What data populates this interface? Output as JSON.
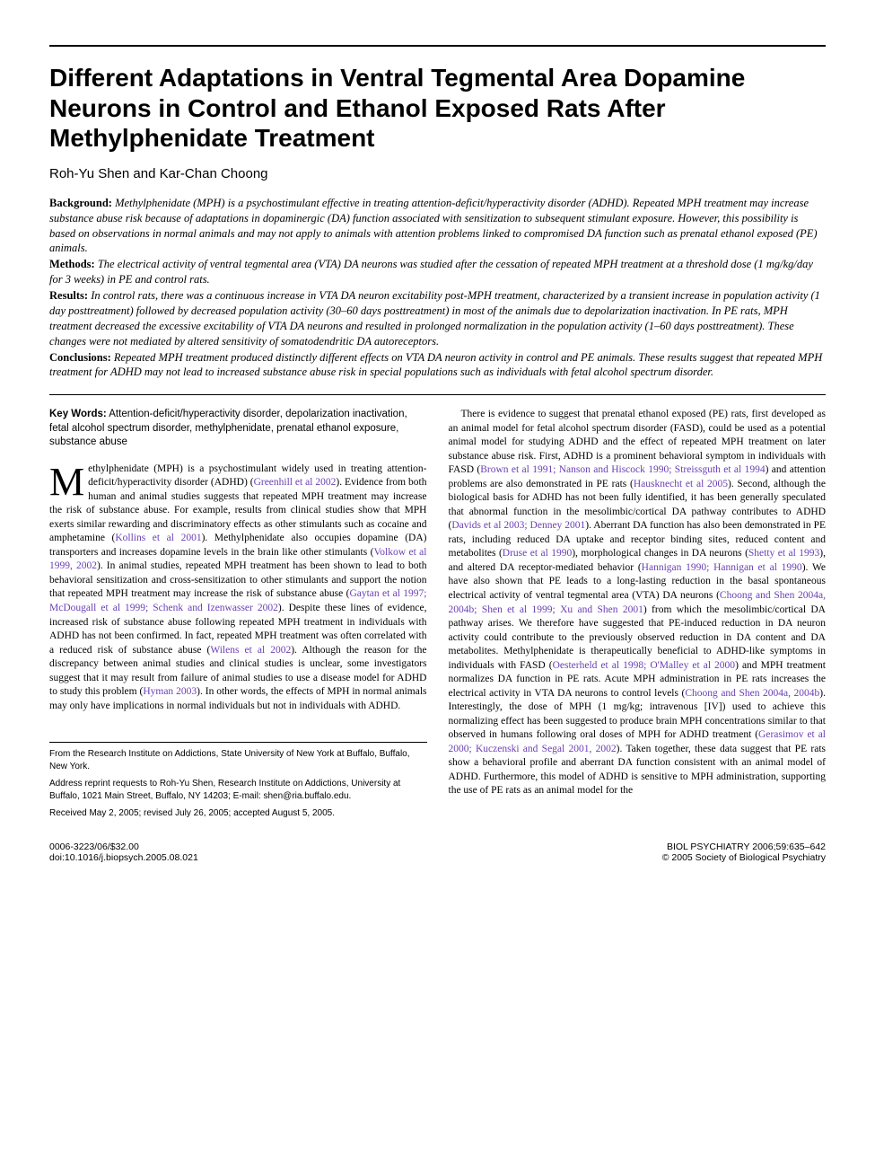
{
  "title": "Different Adaptations in Ventral Tegmental Area Dopamine Neurons in Control and Ethanol Exposed Rats After Methylphenidate Treatment",
  "authors": "Roh-Yu Shen and Kar-Chan Choong",
  "abstract": {
    "background_label": "Background:",
    "background": "Methylphenidate (MPH) is a psychostimulant effective in treating attention-deficit/hyperactivity disorder (ADHD). Repeated MPH treatment may increase substance abuse risk because of adaptations in dopaminergic (DA) function associated with sensitization to subsequent stimulant exposure. However, this possibility is based on observations in normal animals and may not apply to animals with attention problems linked to compromised DA function such as prenatal ethanol exposed (PE) animals.",
    "methods_label": "Methods:",
    "methods": "The electrical activity of ventral tegmental area (VTA) DA neurons was studied after the cessation of repeated MPH treatment at a threshold dose (1 mg/kg/day for 3 weeks) in PE and control rats.",
    "results_label": "Results:",
    "results": "In control rats, there was a continuous increase in VTA DA neuron excitability post-MPH treatment, characterized by a transient increase in population activity (1 day posttreatment) followed by decreased population activity (30–60 days posttreatment) in most of the animals due to depolarization inactivation. In PE rats, MPH treatment decreased the excessive excitability of VTA DA neurons and resulted in prolonged normalization in the population activity (1–60 days posttreatment). These changes were not mediated by altered sensitivity of somatodendritic DA autoreceptors.",
    "conclusions_label": "Conclusions:",
    "conclusions": "Repeated MPH treatment produced distinctly different effects on VTA DA neuron activity in control and PE animals. These results suggest that repeated MPH treatment for ADHD may not lead to increased substance abuse risk in special populations such as individuals with fetal alcohol spectrum disorder."
  },
  "keywords": {
    "label": "Key Words:",
    "text": "Attention-deficit/hyperactivity disorder, depolarization inactivation, fetal alcohol spectrum disorder, methylphenidate, prenatal ethanol exposure, substance abuse"
  },
  "col1": {
    "dropcap": "M",
    "p1a": "ethylphenidate (MPH) is a psychostimulant widely used in treating attention-deficit/hyperactivity disorder (ADHD) (",
    "c1": "Greenhill et al 2002",
    "p1b": "). Evidence from both human and animal studies suggests that repeated MPH treatment may increase the risk of substance abuse. For example, results from clinical studies show that MPH exerts similar rewarding and discriminatory effects as other stimulants such as cocaine and amphetamine (",
    "c2": "Kollins et al 2001",
    "p1c": "). Methylphenidate also occupies dopamine (DA) transporters and increases dopamine levels in the brain like other stimulants (",
    "c3": "Volkow et al 1999, 2002",
    "p1d": "). In animal studies, repeated MPH treatment has been shown to lead to both behavioral sensitization and cross-sensitization to other stimulants and support the notion that repeated MPH treatment may increase the risk of substance abuse (",
    "c4": "Gaytan et al 1997; McDougall et al 1999; Schenk and Izenwasser 2002",
    "p1e": "). Despite these lines of evidence, increased risk of substance abuse following repeated MPH treatment in individuals with ADHD has not been confirmed. In fact, repeated MPH treatment was often correlated with a reduced risk of substance abuse (",
    "c5": "Wilens et al 2002",
    "p1f": "). Although the reason for the discrepancy between animal studies and clinical studies is unclear, some investigators suggest that it may result from failure of animal studies to use a disease model for ADHD to study this problem (",
    "c6": "Hyman 2003",
    "p1g": "). In other words, the effects of MPH in normal animals may only have implications in normal individuals but not in individuals with ADHD."
  },
  "col2": {
    "p1a": "There is evidence to suggest that prenatal ethanol exposed (PE) rats, first developed as an animal model for fetal alcohol spectrum disorder (FASD), could be used as a potential animal model for studying ADHD and the effect of repeated MPH treatment on later substance abuse risk. First, ADHD is a prominent behavioral symptom in individuals with FASD (",
    "c1": "Brown et al 1991; Nanson and Hiscock 1990; Streissguth et al 1994",
    "p1b": ") and attention problems are also demonstrated in PE rats (",
    "c2": "Hausknecht et al 2005",
    "p1c": "). Second, although the biological basis for ADHD has not been fully identified, it has been generally speculated that abnormal function in the mesolimbic/cortical DA pathway contributes to ADHD (",
    "c3": "Davids et al 2003; Denney 2001",
    "p1d": "). Aberrant DA function has also been demonstrated in PE rats, including reduced DA uptake and receptor binding sites, reduced content and metabolites (",
    "c4": "Druse et al 1990",
    "p1e": "), morphological changes in DA neurons (",
    "c5": "Shetty et al 1993",
    "p1f": "), and altered DA receptor-mediated behavior (",
    "c6": "Hannigan 1990; Hannigan et al 1990",
    "p1g": "). We have also shown that PE leads to a long-lasting reduction in the basal spontaneous electrical activity of ventral tegmental area (VTA) DA neurons (",
    "c7": "Choong and Shen 2004a, 2004b; Shen et al 1999; Xu and Shen 2001",
    "p1h": ") from which the mesolimbic/cortical DA pathway arises. We therefore have suggested that PE-induced reduction in DA neuron activity could contribute to the previously observed reduction in DA content and DA metabolites. Methylphenidate is therapeutically beneficial to ADHD-like symptoms in individuals with FASD (",
    "c8": "Oesterheld et al 1998; O'Malley et al 2000",
    "p1i": ") and MPH treatment normalizes DA function in PE rats. Acute MPH administration in PE rats increases the electrical activity in VTA DA neurons to control levels (",
    "c9": "Choong and Shen 2004a, 2004b",
    "p1j": "). Interestingly, the dose of MPH (1 mg/kg; intravenous [IV]) used to achieve this normalizing effect has been suggested to produce brain MPH concentrations similar to that observed in humans following oral doses of MPH for ADHD treatment (",
    "c10": "Gerasimov et al 2000; Kuczenski and Segal 2001, 2002",
    "p1k": "). Taken together, these data suggest that PE rats show a behavioral profile and aberrant DA function consistent with an animal model of ADHD. Furthermore, this model of ADHD is sensitive to MPH administration, supporting the use of PE rats as an animal model for the"
  },
  "footnotes": {
    "f1": "From the Research Institute on Addictions, State University of New York at Buffalo, Buffalo, New York.",
    "f2": "Address reprint requests to Roh-Yu Shen, Research Institute on Addictions, University at Buffalo, 1021 Main Street, Buffalo, NY 14203; E-mail: shen@ria.buffalo.edu.",
    "f3": "Received May 2, 2005; revised July 26, 2005; accepted August 5, 2005."
  },
  "footer": {
    "left1": "0006-3223/06/$32.00",
    "left2": "doi:10.1016/j.biopsych.2005.08.021",
    "right1": "BIOL PSYCHIATRY 2006;59:635–642",
    "right2": "© 2005 Society of Biological Psychiatry"
  },
  "colors": {
    "citation": "#6a3fb5",
    "text": "#000000",
    "background": "#ffffff"
  }
}
